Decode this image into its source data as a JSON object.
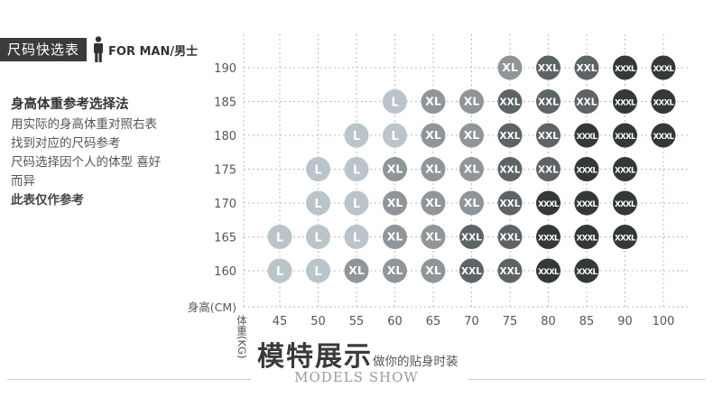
{
  "header": {
    "tag": "尺码快选表",
    "icon": "man-icon",
    "for_man": "FOR MAN/男士"
  },
  "sidebar": {
    "heading": "身高体重参考选择法",
    "lines": [
      "用实际的身高体重对照右表",
      "找到对应的尺码参考",
      "尺码选择因个人的体型 喜好",
      "而异"
    ],
    "note": "此表仅作参考"
  },
  "footer": {
    "title": "模特展示",
    "subtitle": "做你的贴身时装",
    "english": "MODELS SHOW"
  },
  "colors": {
    "L": "#b9c5ca",
    "XL": "#8f9598",
    "XXL": "#5e6466",
    "XXXL": "#343839",
    "grid": "#bbbbbb",
    "axis_text": "#555555"
  },
  "chart_data": {
    "type": "table",
    "xlabel": "体重(KG)",
    "ylabel": "身高(CM)",
    "x": [
      45,
      50,
      55,
      60,
      65,
      70,
      75,
      80,
      85,
      90,
      100
    ],
    "y": [
      190,
      185,
      180,
      175,
      170,
      165,
      160
    ],
    "grid": true,
    "cells": [
      [
        "",
        "",
        "",
        "",
        "",
        "",
        "XL",
        "XXL",
        "XXL",
        "XXXL",
        "XXXL"
      ],
      [
        "",
        "",
        "",
        "L",
        "XL",
        "XL",
        "XXL",
        "XXL",
        "XXL",
        "XXXL",
        "XXXL"
      ],
      [
        "",
        "",
        "L",
        "L",
        "XL",
        "XL",
        "XXL",
        "XXL",
        "XXXL",
        "XXXL",
        "XXXL"
      ],
      [
        "",
        "L",
        "L",
        "XL",
        "XL",
        "XL",
        "XXL",
        "XXL",
        "XXXL",
        "XXXL",
        ""
      ],
      [
        "",
        "L",
        "L",
        "XL",
        "XL",
        "XL",
        "XXL",
        "XXXL",
        "XXXL",
        "XXXL",
        ""
      ],
      [
        "L",
        "L",
        "L",
        "XL",
        "XL",
        "XXL",
        "XXL",
        "XXXL",
        "XXXL",
        "XXXL",
        ""
      ],
      [
        "L",
        "L",
        "XL",
        "XL",
        "XL",
        "XXL",
        "XXL",
        "XXXL",
        "XXXL",
        "",
        ""
      ]
    ]
  }
}
